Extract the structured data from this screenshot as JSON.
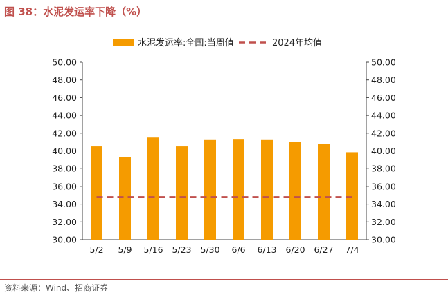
{
  "header": {
    "title": "图 38：水泥发运率下降（%）"
  },
  "footer": {
    "source": "资料来源：Wind、招商证券"
  },
  "colors": {
    "bar": "#f59b00",
    "avg": "#c0504d",
    "accent": "#c0504d"
  },
  "chart_data": {
    "type": "bar",
    "categories": [
      "5/2",
      "5/9",
      "5/16",
      "5/23",
      "5/30",
      "6/6",
      "6/13",
      "6/20",
      "6/27",
      "7/4"
    ],
    "series": [
      {
        "name": "水泥发运率:全国:当周值",
        "type": "bar",
        "values": [
          40.5,
          39.3,
          41.5,
          40.5,
          41.3,
          41.35,
          41.3,
          41.0,
          40.8,
          39.85
        ]
      },
      {
        "name": "2024年均值",
        "type": "line",
        "style": "dashed",
        "values": [
          34.8,
          34.8,
          34.8,
          34.8,
          34.8,
          34.8,
          34.8,
          34.8,
          34.8,
          34.8
        ]
      }
    ],
    "ylim": [
      30,
      50
    ],
    "y_ticks": [
      "30.00",
      "32.00",
      "34.00",
      "36.00",
      "38.00",
      "40.00",
      "42.00",
      "44.00",
      "46.00",
      "48.00",
      "50.00"
    ],
    "y2_ticks": [
      "30.00",
      "32.00",
      "34.00",
      "36.00",
      "38.00",
      "40.00",
      "42.00",
      "44.00",
      "46.00",
      "48.00",
      "50.00"
    ],
    "legend_position": "top-center",
    "grid": false
  }
}
